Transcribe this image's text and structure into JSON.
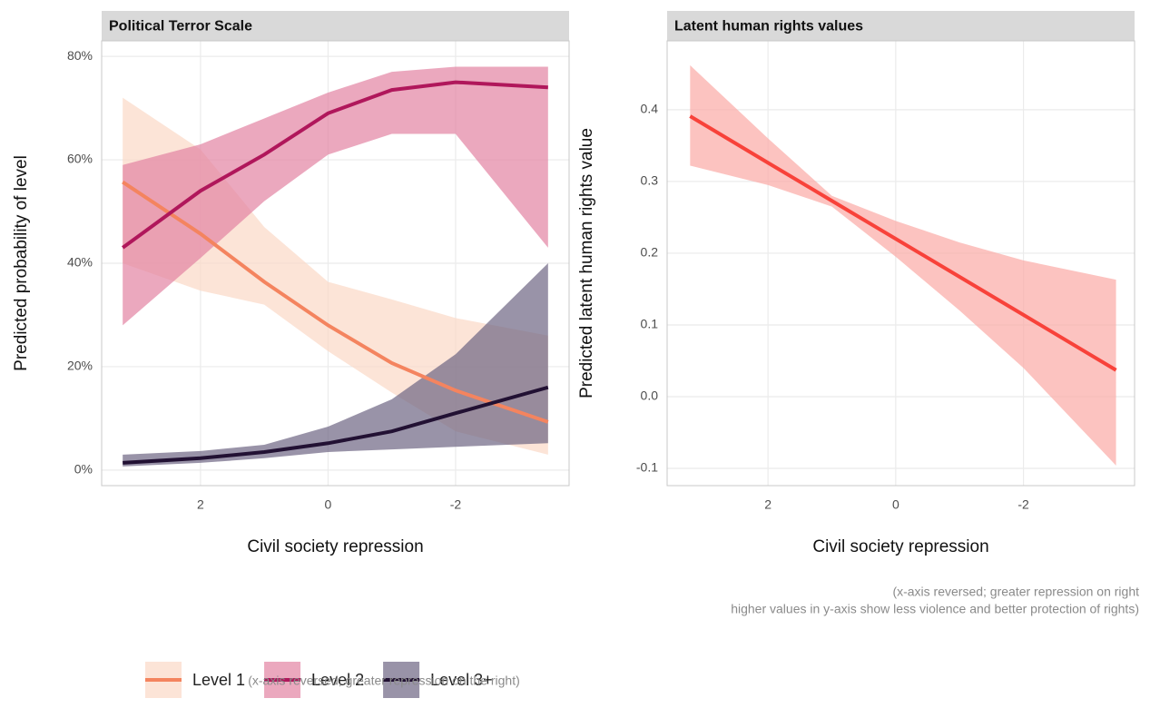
{
  "chart_data": [
    {
      "type": "line",
      "title": "Political Terror Scale",
      "x_label": "Civil society repression",
      "y_label": "Predicted probability of level",
      "x": [
        3.22,
        2,
        1,
        0,
        -1,
        -2,
        -3.45
      ],
      "xlim": [
        3.55,
        -3.78
      ],
      "xticks": [
        2,
        0,
        -2
      ],
      "ylim": [
        -3,
        83
      ],
      "yticks": [
        {
          "value": 0,
          "label": "0%"
        },
        {
          "value": 20,
          "label": "20%"
        },
        {
          "value": 40,
          "label": "40%"
        },
        {
          "value": 60,
          "label": "60%"
        },
        {
          "value": 80,
          "label": "80%"
        }
      ],
      "grid": true,
      "series": [
        {
          "name": "Level 1",
          "color": "#f4845f",
          "band_color": "#fbd9c6",
          "values": [
            55.7,
            45.7,
            36.4,
            28,
            20.7,
            15.4,
            9.3
          ],
          "lower": [
            40,
            34.7,
            32,
            23,
            15,
            7.5,
            3
          ],
          "upper": [
            72,
            62,
            47,
            36.4,
            33,
            29.4,
            26
          ]
        },
        {
          "name": "Level 2",
          "color": "#b0175b",
          "band_color": "#e283a3",
          "values": [
            43,
            54,
            61,
            69,
            73.5,
            75,
            74
          ],
          "lower": [
            28,
            41,
            52,
            61,
            65,
            65,
            43
          ],
          "upper": [
            59,
            63,
            68,
            73,
            77,
            78,
            78
          ]
        },
        {
          "name": "Level 3+",
          "color": "#221133",
          "band_color": "#6e6583",
          "values": [
            1.4,
            2.3,
            3.5,
            5.2,
            7.5,
            11,
            16
          ],
          "lower": [
            0.7,
            1.4,
            2.3,
            3.5,
            4,
            4.5,
            5.2
          ],
          "upper": [
            3,
            3.7,
            4.9,
            8.4,
            13.7,
            22.4,
            40
          ]
        }
      ],
      "caption": [
        "(x-axis reversed; greater repression on the right)"
      ]
    },
    {
      "type": "line",
      "title": "Latent human rights values",
      "x_label": "Civil society repression",
      "y_label": "Predicted latent human rights value",
      "x": [
        3.22,
        2,
        1,
        0,
        -1,
        -2,
        -3.45
      ],
      "xlim": [
        3.58,
        -3.74
      ],
      "xticks": [
        2,
        0,
        -2
      ],
      "ylim": [
        -0.124,
        0.496
      ],
      "yticks": [
        -0.1,
        {
          "value": 0,
          "label": "0.0"
        },
        0.1,
        0.2,
        0.3,
        0.4
      ],
      "grid": true,
      "series": [
        {
          "color": "#f8423a",
          "band_color": "#fbaaa5",
          "values": [
            0.391,
            0.326,
            0.273,
            0.22,
            0.167,
            0.114,
            0.037
          ],
          "lower": [
            0.322,
            0.295,
            0.265,
            0.195,
            0.12,
            0.04,
            -0.096
          ],
          "upper": [
            0.462,
            0.36,
            0.28,
            0.245,
            0.215,
            0.19,
            0.163
          ]
        }
      ],
      "caption": [
        "(x-axis reversed; greater repression on right",
        "higher values in y-axis show less violence and better protection of rights)"
      ]
    }
  ]
}
